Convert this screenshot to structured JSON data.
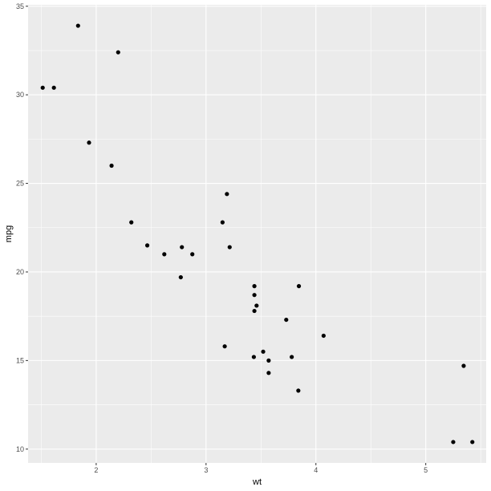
{
  "chart_data": {
    "type": "scatter",
    "title": "",
    "xlabel": "wt",
    "ylabel": "mpg",
    "xlim": [
      1.38,
      5.55
    ],
    "ylim": [
      9.22,
      35.08
    ],
    "x_ticks": [
      2,
      3,
      4,
      5
    ],
    "y_ticks": [
      10,
      15,
      20,
      25,
      30,
      35
    ],
    "grid": true,
    "legend": "none",
    "series": [
      {
        "points": [
          {
            "x": 2.62,
            "y": 21.0
          },
          {
            "x": 2.875,
            "y": 21.0
          },
          {
            "x": 2.32,
            "y": 22.8
          },
          {
            "x": 3.215,
            "y": 21.4
          },
          {
            "x": 3.44,
            "y": 18.7
          },
          {
            "x": 3.46,
            "y": 18.1
          },
          {
            "x": 3.57,
            "y": 14.3
          },
          {
            "x": 3.19,
            "y": 24.4
          },
          {
            "x": 3.15,
            "y": 22.8
          },
          {
            "x": 3.44,
            "y": 19.2
          },
          {
            "x": 3.44,
            "y": 17.8
          },
          {
            "x": 4.07,
            "y": 16.4
          },
          {
            "x": 3.73,
            "y": 17.3
          },
          {
            "x": 3.78,
            "y": 15.2
          },
          {
            "x": 5.25,
            "y": 10.4
          },
          {
            "x": 5.424,
            "y": 10.4
          },
          {
            "x": 5.345,
            "y": 14.7
          },
          {
            "x": 2.2,
            "y": 32.4
          },
          {
            "x": 1.615,
            "y": 30.4
          },
          {
            "x": 1.835,
            "y": 33.9
          },
          {
            "x": 2.465,
            "y": 21.5
          },
          {
            "x": 3.52,
            "y": 15.5
          },
          {
            "x": 3.435,
            "y": 15.2
          },
          {
            "x": 3.84,
            "y": 13.3
          },
          {
            "x": 3.845,
            "y": 19.2
          },
          {
            "x": 1.935,
            "y": 27.3
          },
          {
            "x": 2.14,
            "y": 26.0
          },
          {
            "x": 1.513,
            "y": 30.4
          },
          {
            "x": 3.17,
            "y": 15.8
          },
          {
            "x": 2.77,
            "y": 19.7
          },
          {
            "x": 3.57,
            "y": 15.0
          },
          {
            "x": 2.78,
            "y": 21.4
          }
        ]
      }
    ]
  },
  "colors": {
    "panel_background": "#ebebeb",
    "grid_major": "#ffffff",
    "point": "#000000",
    "tick_text": "#4d4d4d",
    "tick_mark": "#333333"
  }
}
